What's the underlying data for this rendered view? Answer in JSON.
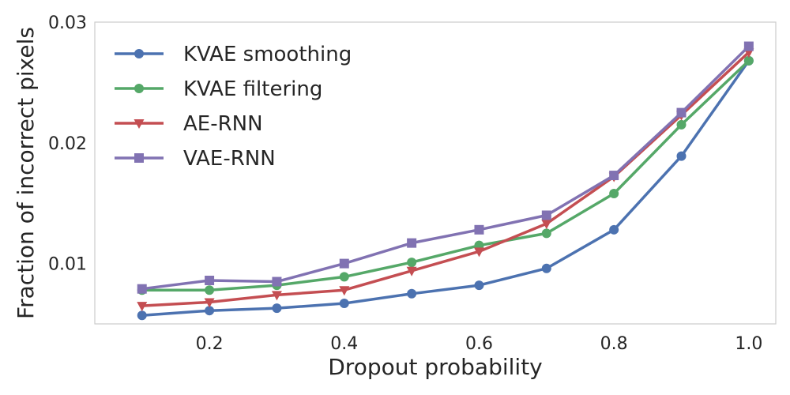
{
  "chart_data": {
    "type": "line",
    "title": "",
    "xlabel": "Dropout probability",
    "ylabel": "Fraction of incorrect pixels",
    "xlim": [
      0.03,
      1.04
    ],
    "ylim": [
      0.005,
      0.03
    ],
    "xticks": [
      0.2,
      0.4,
      0.6,
      0.8,
      1.0
    ],
    "xtick_labels": [
      "0.2",
      "0.4",
      "0.6",
      "0.8",
      "1.0"
    ],
    "yticks": [
      0.01,
      0.02,
      0.03
    ],
    "ytick_labels": [
      "0.01",
      "0.02",
      "0.03"
    ],
    "grid": false,
    "legend_position": "top-left",
    "x": [
      0.1,
      0.2,
      0.3,
      0.4,
      0.5,
      0.6,
      0.7,
      0.8,
      0.9,
      1.0
    ],
    "series": [
      {
        "name": "KVAE smoothing",
        "color": "#4c72b0",
        "marker": "circle",
        "values": [
          0.0057,
          0.0061,
          0.0063,
          0.0067,
          0.0075,
          0.0082,
          0.0096,
          0.0128,
          0.0189,
          0.0268
        ]
      },
      {
        "name": "KVAE filtering",
        "color": "#55a868",
        "marker": "circle",
        "values": [
          0.0078,
          0.0078,
          0.0082,
          0.0089,
          0.0101,
          0.0115,
          0.0125,
          0.0158,
          0.0215,
          0.0268
        ]
      },
      {
        "name": "AE-RNN",
        "color": "#c44e52",
        "marker": "triangle-down",
        "values": [
          0.0065,
          0.0068,
          0.0074,
          0.0078,
          0.0094,
          0.011,
          0.0133,
          0.0172,
          0.0223,
          0.0275
        ]
      },
      {
        "name": "VAE-RNN",
        "color": "#8172b2",
        "marker": "square",
        "values": [
          0.0079,
          0.0086,
          0.0085,
          0.01,
          0.0117,
          0.0128,
          0.014,
          0.0173,
          0.0225,
          0.028
        ]
      }
    ]
  }
}
